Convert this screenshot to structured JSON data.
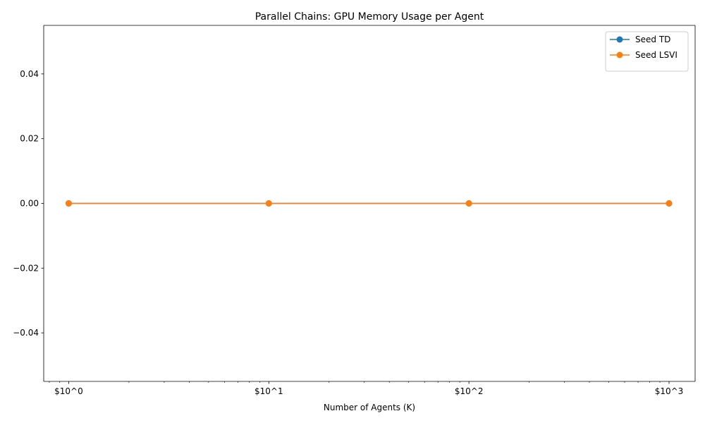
{
  "chart_data": {
    "type": "line",
    "title": "Parallel Chains: GPU Memory Usage per Agent",
    "xlabel": "Number of Agents (K)",
    "ylabel": "",
    "x_scale": "log",
    "x": [
      1,
      10,
      100,
      1000
    ],
    "x_tick_values": [
      1,
      10,
      100,
      1000
    ],
    "x_tick_labels": [
      "$10^0",
      "$10^1",
      "$10^2",
      "$10^3"
    ],
    "xlim": [
      0.75,
      1350
    ],
    "y_ticks": [
      -0.04,
      -0.02,
      0.0,
      0.02,
      0.04
    ],
    "y_tick_labels": [
      "−0.04",
      "−0.02",
      "0.00",
      "0.02",
      "0.04"
    ],
    "ylim": [
      -0.055,
      0.055
    ],
    "grid": false,
    "legend_position": "top-right",
    "series": [
      {
        "name": "Seed TD",
        "color": "#1f77b4",
        "values": [
          0,
          0,
          0,
          0
        ]
      },
      {
        "name": "Seed LSVI",
        "color": "#ff7f0e",
        "values": [
          0,
          0,
          0,
          0
        ]
      }
    ]
  }
}
